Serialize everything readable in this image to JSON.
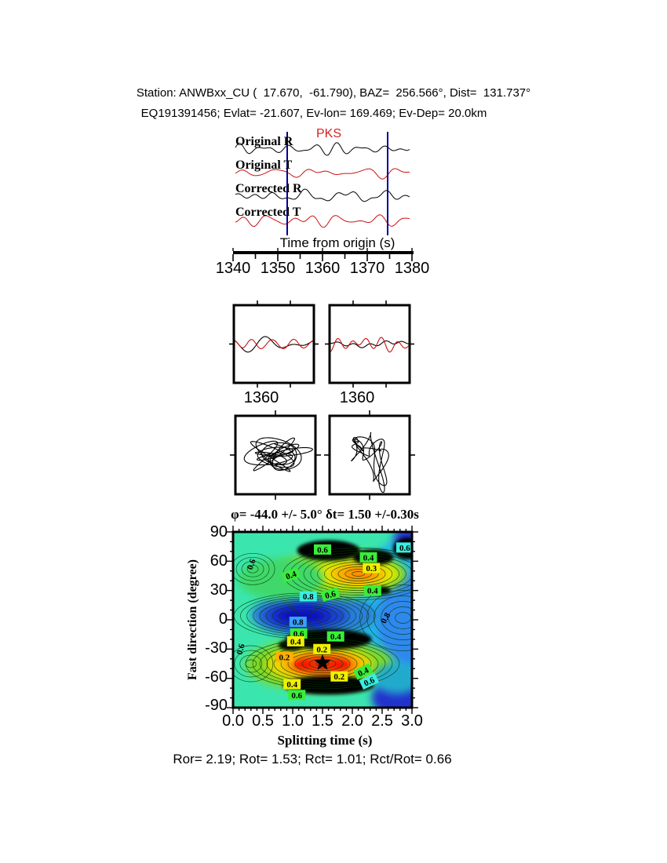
{
  "title": {
    "line1": "Station: ANWBxx_CU (  17.670,  -61.790), BAZ=  256.566°, Dist=  131.737°",
    "line2": "EQ191391456; Evlat= -21.607, Ev-lon= 169.469; Ev-Dep= 20.0km"
  },
  "seismogram_panel": {
    "phase_label": "PKS",
    "phase_label_color": "#d42222",
    "trace_labels": [
      "Original R",
      "Original T",
      "Corrected R",
      "Corrected T"
    ],
    "trace_colors": [
      "#000000",
      "#cc1111",
      "#000000",
      "#cc1111"
    ],
    "window_line_color": "#00009a",
    "time_axis": {
      "label": "Time from origin (s)",
      "ticks": [
        "1340",
        "1350",
        "1360",
        "1370",
        "1380"
      ]
    }
  },
  "window_panels": {
    "left_tick_label": "1360",
    "right_tick_label": "1360",
    "trace_colors": [
      "#000000",
      "#cc1111"
    ]
  },
  "contour_panel": {
    "title": "φ= -44.0 +/- 5.0° δt= 1.50 +/-0.30s",
    "xlabel": "Splitting time (s)",
    "ylabel": "Fast direction (degree)",
    "xticks": [
      "0.0",
      "0.5",
      "1.0",
      "1.5",
      "2.0",
      "2.5",
      "3.0"
    ],
    "yticks": [
      "90",
      "60",
      "30",
      "0",
      "-30",
      "-60",
      "-90"
    ],
    "label_colors": {
      "green": "#3aee3a",
      "cyan": "#3aeee0",
      "yellow": "#f0f000",
      "orange": "#ffb000",
      "blue": "#38a0ff"
    }
  },
  "results_line": "Ror= 2.19; Rot= 1.53; Rct= 1.01; Rct/Rot= 0.66",
  "results": {
    "Ror": 2.19,
    "Rot": 1.53,
    "Rct": 1.01,
    "Rct_over_Rot": 0.66
  },
  "chart_data": [
    {
      "type": "line",
      "title": "Radial and transverse seismograms before and after splitting correction",
      "xlabel": "Time from origin (s)",
      "x_range": [
        1340,
        1380
      ],
      "xticks": [
        1340,
        1350,
        1360,
        1370,
        1380
      ],
      "series": [
        {
          "name": "Original R",
          "color": "black"
        },
        {
          "name": "Original T",
          "color": "red"
        },
        {
          "name": "Corrected R",
          "color": "black"
        },
        {
          "name": "Corrected T",
          "color": "red"
        }
      ],
      "phase": "PKS",
      "analysis_window_s": [
        1352,
        1375
      ],
      "window_tick_label": 1360
    },
    {
      "type": "contour",
      "title": "φ= -44.0 +/- 5.0° δt= 1.50 +/-0.30s",
      "xlabel": "Splitting time (s)",
      "ylabel": "Fast direction (degree)",
      "xlim": [
        0,
        3
      ],
      "ylim": [
        -90,
        90
      ],
      "xticks": [
        0.0,
        0.5,
        1.0,
        1.5,
        2.0,
        2.5,
        3.0
      ],
      "yticks": [
        90,
        60,
        30,
        0,
        -30,
        -60,
        -90
      ],
      "best_fit": {
        "phi_deg": -44.0,
        "phi_err_deg": 5.0,
        "dt_s": 1.5,
        "dt_err_s": 0.3
      },
      "star": {
        "x": 1.5,
        "y": -44
      },
      "contour_labels": [
        {
          "v": "0.6",
          "x": 1.5,
          "y": 72,
          "bg": "green",
          "rot": 0
        },
        {
          "v": "0.4",
          "x": 2.27,
          "y": 64,
          "bg": "green",
          "rot": 0
        },
        {
          "v": "0.3",
          "x": 2.32,
          "y": 53,
          "bg": "yellow",
          "rot": 0
        },
        {
          "v": "0.6",
          "x": 2.88,
          "y": 74,
          "bg": "cyan",
          "rot": 0
        },
        {
          "v": "0.4",
          "x": 0.97,
          "y": 46,
          "bg": "green",
          "rot": -20
        },
        {
          "v": "0.6",
          "x": 0.3,
          "y": 57,
          "bg": "none",
          "rot": -70
        },
        {
          "v": "0.8",
          "x": 1.26,
          "y": 24,
          "bg": "cyan",
          "rot": 0
        },
        {
          "v": "0.6",
          "x": 1.63,
          "y": 26,
          "bg": "green",
          "rot": -15
        },
        {
          "v": "0.4",
          "x": 2.34,
          "y": 30,
          "bg": "green",
          "rot": 0
        },
        {
          "v": "0.8",
          "x": 2.55,
          "y": 2,
          "bg": "none",
          "rot": -60
        },
        {
          "v": "0.8",
          "x": 1.09,
          "y": -2,
          "bg": "blue",
          "rot": 0
        },
        {
          "v": "0.6",
          "x": 1.1,
          "y": -14,
          "bg": "green",
          "rot": 0
        },
        {
          "v": "0.4",
          "x": 1.05,
          "y": -22,
          "bg": "yellow",
          "rot": 0
        },
        {
          "v": "0.4",
          "x": 1.72,
          "y": -17,
          "bg": "green",
          "rot": 0
        },
        {
          "v": "0.2",
          "x": 1.49,
          "y": -30,
          "bg": "yellow",
          "rot": 0
        },
        {
          "v": "0.2",
          "x": 0.86,
          "y": -38,
          "bg": "orange",
          "rot": 0
        },
        {
          "v": "0.2",
          "x": 1.78,
          "y": -58,
          "bg": "yellow",
          "rot": 0
        },
        {
          "v": "0.4",
          "x": 2.18,
          "y": -53,
          "bg": "green",
          "rot": -25
        },
        {
          "v": "0.6",
          "x": 2.28,
          "y": -63,
          "bg": "cyan",
          "rot": -25
        },
        {
          "v": "0.4",
          "x": 0.99,
          "y": -66,
          "bg": "yellow",
          "rot": 0
        },
        {
          "v": "0.6",
          "x": 1.07,
          "y": -77,
          "bg": "green",
          "rot": 0
        },
        {
          "v": "0.6",
          "x": 0.12,
          "y": -30,
          "bg": "none",
          "rot": -75
        }
      ]
    }
  ]
}
